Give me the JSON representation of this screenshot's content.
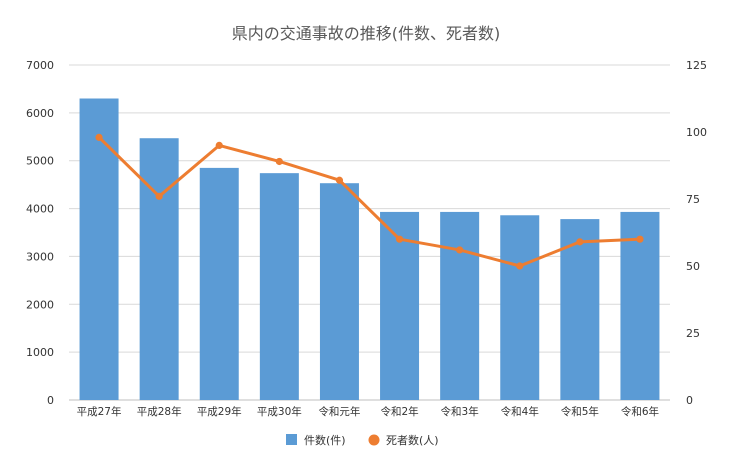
{
  "chart_data": {
    "type": "bar",
    "title": "県内の交通事故の推移(件数、死者数)",
    "categories": [
      "平成27年",
      "平成28年",
      "平成29年",
      "平成30年",
      "令和元年",
      "令和2年",
      "令和3年",
      "令和4年",
      "令和5年",
      "令和6年"
    ],
    "series": [
      {
        "name": "件数(件)",
        "type": "bar",
        "axis": "left",
        "color": "#5B9BD5",
        "values": [
          6300,
          5470,
          4850,
          4740,
          4530,
          3930,
          3930,
          3860,
          3780,
          3930
        ]
      },
      {
        "name": "死者数(人)",
        "type": "line",
        "axis": "right",
        "color": "#ED7D31",
        "values": [
          98,
          76,
          95,
          89,
          82,
          60,
          56,
          50,
          59,
          60
        ]
      }
    ],
    "y_left": {
      "min": 0,
      "max": 7000,
      "ticks": [
        0,
        1000,
        2000,
        3000,
        4000,
        5000,
        6000,
        7000
      ]
    },
    "y_right": {
      "min": 0,
      "max": 125,
      "ticks": [
        0,
        25,
        50,
        75,
        100,
        125
      ]
    },
    "grid": true,
    "legend_position": "bottom",
    "gridline_color": "#D9D9D9"
  }
}
